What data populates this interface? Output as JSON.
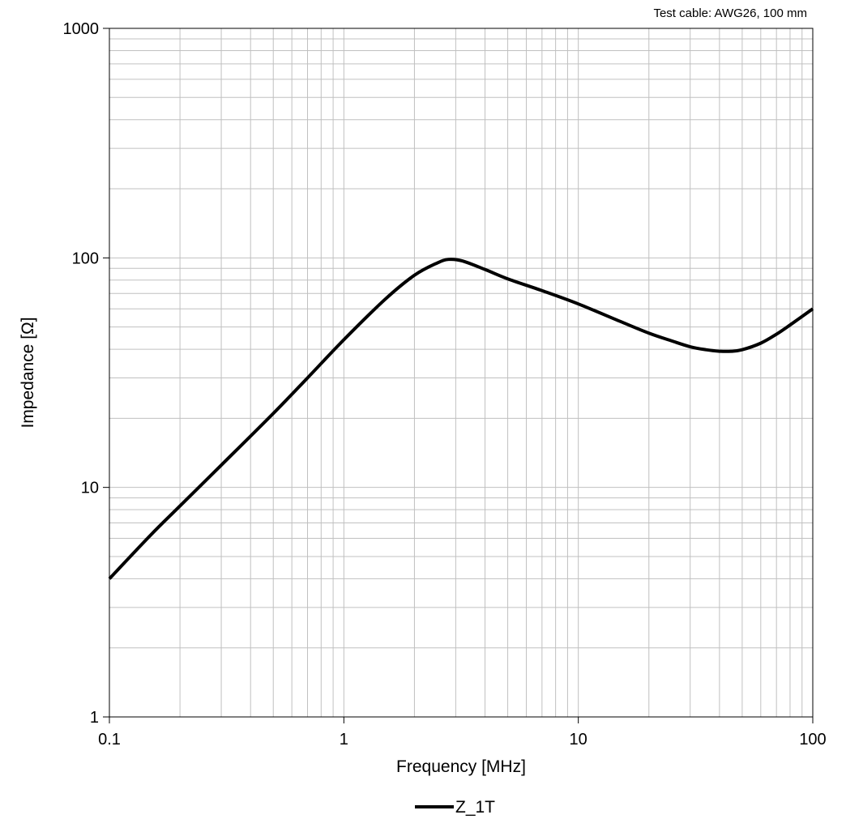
{
  "chart_data": {
    "type": "line",
    "annotation": "Test cable: AWG26, 100 mm",
    "xlabel": "Frequency [MHz]",
    "ylabel": "Impedance [Ω]",
    "xscale": "log",
    "yscale": "log",
    "xlim": [
      0.1,
      100
    ],
    "ylim": [
      1,
      1000
    ],
    "x_ticks": [
      0.1,
      1,
      10,
      100
    ],
    "x_tick_labels": [
      "0.1",
      "1",
      "10",
      "100"
    ],
    "y_ticks": [
      1,
      10,
      100,
      1000
    ],
    "y_tick_labels": [
      "1",
      "10",
      "100",
      "1000"
    ],
    "grid": true,
    "legend_position": "bottom-center",
    "series": [
      {
        "name": "Z_1T",
        "color": "#000000",
        "x": [
          0.1,
          0.15,
          0.2,
          0.3,
          0.5,
          0.7,
          1.0,
          1.5,
          2.0,
          2.5,
          2.8,
          3.2,
          4.0,
          5.0,
          7.0,
          10,
          15,
          20,
          25,
          30,
          35,
          40,
          45,
          50,
          60,
          70,
          80,
          100
        ],
        "y": [
          4.0,
          6.2,
          8.3,
          12.5,
          21,
          30,
          44,
          66,
          84,
          95,
          98.5,
          97,
          89,
          81,
          72,
          63,
          53,
          47,
          43.5,
          41,
          39.8,
          39.2,
          39.2,
          39.8,
          42.5,
          46.5,
          51,
          60
        ]
      }
    ]
  }
}
